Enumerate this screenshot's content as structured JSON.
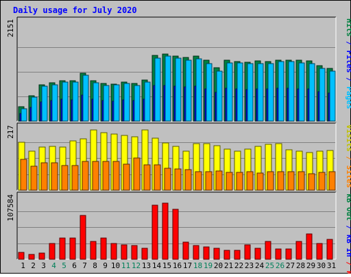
{
  "chart_data": {
    "type": "bar",
    "title": "Daily usage for July 2020",
    "categories": [
      "1",
      "2",
      "3",
      "4",
      "5",
      "6",
      "7",
      "8",
      "9",
      "10",
      "11",
      "12",
      "13",
      "14",
      "15",
      "16",
      "17",
      "18",
      "19",
      "20",
      "21",
      "22",
      "23",
      "24",
      "25",
      "26",
      "27",
      "28",
      "29",
      "30",
      "31"
    ],
    "weekend_days": [
      "4",
      "5",
      "11",
      "12",
      "18",
      "19",
      "25",
      "26"
    ],
    "panels": [
      {
        "id": "pages-files-hits",
        "y_tick_label": "2151",
        "ylim": [
          0,
          2151
        ],
        "right_labels": [
          {
            "text": "Hits",
            "color": "#008040"
          },
          {
            "text": " / ",
            "color": "#0000ff"
          },
          {
            "text": "Files",
            "color": "#0000ff"
          },
          {
            "text": " / ",
            "color": "#0000ff"
          },
          {
            "text": "Pages",
            "color": "#00c0ff"
          }
        ],
        "series": [
          {
            "name": "Hits",
            "color": "#008040",
            "values": [
              310,
              556,
              785,
              829,
              880,
              873,
              1049,
              876,
              823,
              806,
              854,
              825,
              899,
              1434,
              1460,
              1421,
              1388,
              1421,
              1321,
              1169,
              1327,
              1303,
              1287,
              1310,
              1303,
              1325,
              1327,
              1321,
              1305,
              1205,
              1140
            ]
          },
          {
            "name": "Files",
            "color": "#0000ff",
            "values": [
              160,
              300,
              420,
              445,
              470,
              465,
              560,
              470,
              440,
              430,
              455,
              440,
              480,
              770,
              780,
              760,
              745,
              760,
              705,
              625,
              710,
              700,
              690,
              700,
              695,
              710,
              710,
              705,
              700,
              645,
              610
            ]
          },
          {
            "name": "Pages",
            "color": "#00c0ff",
            "values": [
              272,
              520,
              760,
              795,
              853,
              845,
              1003,
              829,
              781,
              783,
              820,
              773,
              853,
              1374,
              1408,
              1364,
              1330,
              1356,
              1253,
              1093,
              1273,
              1261,
              1249,
              1253,
              1249,
              1295,
              1295,
              1269,
              1253,
              1153,
              1093
            ]
          }
        ]
      },
      {
        "id": "visits-sites",
        "y_tick_label": "217",
        "ylim": [
          0,
          217
        ],
        "right_labels": [
          {
            "text": "Visits",
            "color": "#c0c000"
          },
          {
            "text": " / ",
            "color": "#ff8000"
          },
          {
            "text": "Sites",
            "color": "#ff8000"
          }
        ],
        "series": [
          {
            "name": "Visits",
            "color": "#ffff00",
            "values": [
              164,
              133,
              146,
              150,
              147,
              168,
              175,
              205,
              196,
              190,
              186,
              181,
              204,
              176,
              161,
              149,
              132,
              158,
              159,
              152,
              141,
              134,
              139,
              149,
              157,
              158,
              137,
              134,
              129,
              132,
              136
            ]
          },
          {
            "name": "Sites",
            "color": "#ff8000",
            "values": [
              106,
              81,
              93,
              93,
              85,
              84,
              99,
              98,
              99,
              97,
              89,
              109,
              86,
              86,
              74,
              73,
              71,
              64,
              64,
              65,
              61,
              60,
              64,
              58,
              63,
              62,
              64,
              62,
              57,
              61,
              62
            ]
          }
        ]
      },
      {
        "id": "kb-f-in-out",
        "y_tick_label": "107584",
        "ylim": [
          0,
          107584
        ],
        "right_labels": [
          {
            "text": "kB Out",
            "color": "#008040"
          },
          {
            "text": " / ",
            "color": "#0000ff"
          },
          {
            "text": "kB In",
            "color": "#0000ff"
          },
          {
            "text": " / ",
            "color": "#ff0000"
          },
          {
            "text": "kB F",
            "color": "#ff0000"
          }
        ],
        "series": [
          {
            "name": "kB F",
            "color": "#ff0000",
            "values": [
              11400,
              7600,
              10600,
              26600,
              36100,
              36100,
              74100,
              30400,
              36100,
              26600,
              24700,
              22800,
              18000,
              91200,
              95000,
              84400,
              28500,
              22800,
              20900,
              18000,
              15200,
              15200,
              24700,
              18000,
              29500,
              17100,
              17100,
              30400,
              42800,
              26600,
              33200
            ]
          }
        ]
      }
    ]
  }
}
